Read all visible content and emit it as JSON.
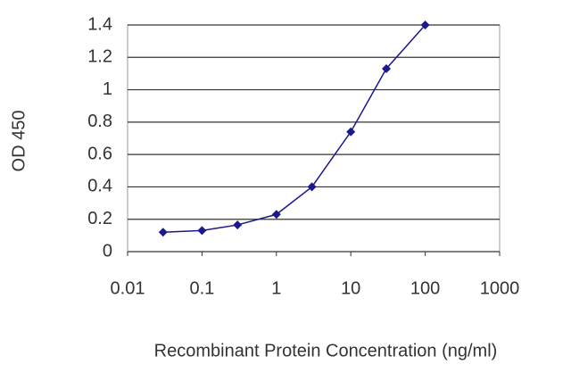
{
  "chart_data": {
    "type": "line",
    "xlabel": "Recombinant Protein Concentration (ng/ml)",
    "ylabel": "OD 450",
    "x": [
      0.03,
      0.1,
      0.3,
      1,
      3,
      10,
      30,
      100
    ],
    "values": [
      0.12,
      0.13,
      0.165,
      0.23,
      0.4,
      0.74,
      1.13,
      1.4
    ],
    "color": "#1a1a8c",
    "xscale": "log",
    "xlim": [
      0.01,
      1000
    ],
    "xticks": [
      0.01,
      0.1,
      1,
      10,
      100,
      1000
    ],
    "ylim": [
      0,
      1.4
    ],
    "yticks": [
      0,
      0.2,
      0.4,
      0.6,
      0.8,
      1,
      1.2,
      1.4
    ],
    "grid": true
  }
}
